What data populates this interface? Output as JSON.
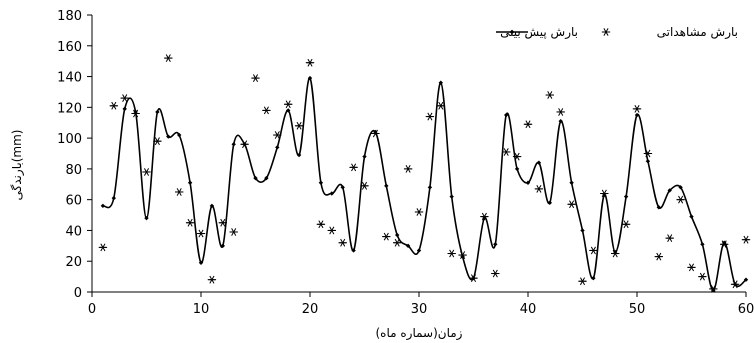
{
  "chart_data": {
    "type": "line",
    "xlabel": "زمان(سماره ماه)",
    "ylabel": "بارندگی(mm)",
    "xlim": [
      0,
      60
    ],
    "ylim": [
      0,
      180
    ],
    "x_ticks": [
      0,
      10,
      20,
      30,
      40,
      50,
      60
    ],
    "y_ticks": [
      0,
      20,
      40,
      60,
      80,
      100,
      120,
      140,
      160,
      180
    ],
    "grid": false,
    "legend_position": "top-right",
    "series": [
      {
        "name": "بارش پیش بینی",
        "style": "line-with-diamond-markers",
        "color": "#000000",
        "x": [
          1,
          2,
          3,
          4,
          5,
          6,
          7,
          8,
          9,
          10,
          11,
          12,
          13,
          14,
          15,
          16,
          17,
          18,
          19,
          20,
          21,
          22,
          23,
          24,
          25,
          26,
          27,
          28,
          29,
          30,
          31,
          32,
          33,
          34,
          35,
          36,
          37,
          38,
          39,
          40,
          41,
          42,
          43,
          44,
          45,
          46,
          47,
          48,
          49,
          50,
          51,
          52,
          53,
          54,
          55,
          56,
          57,
          58,
          59,
          60
        ],
        "values": [
          56,
          61,
          119,
          117,
          48,
          117,
          101,
          102,
          71,
          19,
          56,
          30,
          96,
          96,
          74,
          74,
          94,
          118,
          89,
          139,
          71,
          64,
          68,
          27,
          88,
          104,
          69,
          37,
          30,
          27,
          68,
          136,
          62,
          23,
          9,
          48,
          31,
          115,
          80,
          71,
          84,
          58,
          111,
          71,
          40,
          9,
          63,
          26,
          62,
          115,
          85,
          55,
          66,
          68,
          49,
          31,
          1,
          32,
          5,
          8
        ]
      },
      {
        "name": "بارش مشاهداتی",
        "style": "star-markers",
        "color": "#000000",
        "x": [
          1,
          2,
          3,
          4,
          5,
          6,
          7,
          8,
          9,
          10,
          11,
          12,
          13,
          14,
          15,
          16,
          17,
          18,
          19,
          20,
          21,
          22,
          23,
          24,
          25,
          26,
          27,
          28,
          29,
          30,
          31,
          32,
          33,
          34,
          35,
          36,
          37,
          38,
          39,
          40,
          41,
          42,
          43,
          44,
          45,
          46,
          47,
          48,
          49,
          50,
          51,
          52,
          53,
          54,
          55,
          56,
          57,
          58,
          59,
          60
        ],
        "values": [
          29,
          121,
          126,
          116,
          78,
          98,
          152,
          65,
          45,
          38,
          8,
          45,
          39,
          96,
          139,
          118,
          102,
          122,
          108,
          149,
          44,
          40,
          32,
          81,
          69,
          103,
          36,
          32,
          80,
          52,
          114,
          121,
          25,
          24,
          9,
          49,
          12,
          91,
          88,
          109,
          67,
          128,
          117,
          57,
          7,
          27,
          64,
          25,
          44,
          119,
          90,
          23,
          35,
          60,
          16,
          10,
          2,
          31,
          5,
          34
        ]
      }
    ]
  }
}
